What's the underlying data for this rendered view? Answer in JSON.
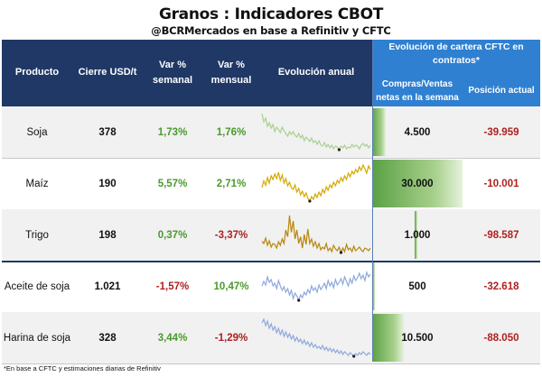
{
  "title": "Granos : Indicadores CBOT",
  "subtitle": "@BCRMercados en base a Refinitiv y CFTC",
  "headers": {
    "producto": "Producto",
    "cierre": "Cierre USD/t",
    "var_semanal": "Var %\nsemanal",
    "var_mensual": "Var %\nmensual",
    "evolucion": "Evolución anual",
    "cftc_group": "Evolución de cartera CFTC en\ncontratos*",
    "compras": "Compras/Ventas\nnetas en la semana",
    "posicion": "Posición actual"
  },
  "rows": [
    {
      "producto": "Soja",
      "cierre": "378",
      "var_semanal": "1,73%",
      "var_mensual": "1,76%",
      "compras": "4.500",
      "posicion": "-39.959",
      "compras_value": 4500,
      "spark_color": "#a9d08e",
      "spark": [
        0.9,
        0.72,
        0.8,
        0.62,
        0.7,
        0.58,
        0.66,
        0.5,
        0.6,
        0.55,
        0.48,
        0.6,
        0.52,
        0.46,
        0.4,
        0.5,
        0.44,
        0.5,
        0.42,
        0.38,
        0.46,
        0.36,
        0.42,
        0.3,
        0.38,
        0.34,
        0.28,
        0.36,
        0.26,
        0.3,
        0.22,
        0.3,
        0.2,
        0.18,
        0.26,
        0.16,
        0.22,
        0.14,
        0.2,
        0.12,
        0.18,
        0.16,
        0.1,
        0.18,
        0.14,
        0.2,
        0.12,
        0.16,
        0.14,
        0.22,
        0.16,
        0.2,
        0.18,
        0.12,
        0.2,
        0.24,
        0.18,
        0.22,
        0.14,
        0.2
      ]
    },
    {
      "producto": "Maíz",
      "cierre": "190",
      "var_semanal": "5,57%",
      "var_mensual": "2,71%",
      "compras": "30.000",
      "posicion": "-10.001",
      "compras_value": 30000,
      "spark_color": "#d4a800",
      "spark": [
        0.4,
        0.55,
        0.45,
        0.62,
        0.5,
        0.66,
        0.58,
        0.7,
        0.6,
        0.74,
        0.56,
        0.68,
        0.5,
        0.6,
        0.44,
        0.52,
        0.4,
        0.36,
        0.46,
        0.3,
        0.38,
        0.24,
        0.32,
        0.2,
        0.28,
        0.16,
        0.1,
        0.2,
        0.14,
        0.26,
        0.18,
        0.3,
        0.22,
        0.36,
        0.28,
        0.42,
        0.34,
        0.46,
        0.4,
        0.52,
        0.44,
        0.56,
        0.5,
        0.62,
        0.54,
        0.66,
        0.58,
        0.72,
        0.64,
        0.76,
        0.7,
        0.8,
        0.74,
        0.86,
        0.78,
        0.9,
        0.82,
        0.72,
        0.88,
        0.8
      ]
    },
    {
      "producto": "Trigo",
      "cierre": "198",
      "var_semanal": "0,37%",
      "var_mensual": "-3,37%",
      "compras": "1.000",
      "posicion": "-98.587",
      "compras_value": 1000,
      "spark_color": "#b8860b",
      "spark": [
        0.35,
        0.3,
        0.42,
        0.26,
        0.36,
        0.22,
        0.3,
        0.28,
        0.2,
        0.34,
        0.26,
        0.4,
        0.3,
        0.6,
        0.45,
        0.92,
        0.55,
        0.8,
        0.4,
        0.6,
        0.3,
        0.45,
        0.2,
        0.5,
        0.28,
        0.62,
        0.3,
        0.4,
        0.24,
        0.34,
        0.2,
        0.3,
        0.16,
        0.22,
        0.18,
        0.3,
        0.14,
        0.2,
        0.12,
        0.26,
        0.18,
        0.14,
        0.22,
        0.1,
        0.2,
        0.12,
        0.28,
        0.16,
        0.2,
        0.12,
        0.24,
        0.14,
        0.18,
        0.22,
        0.16,
        0.12,
        0.2,
        0.18,
        0.14,
        0.2
      ]
    },
    {
      "producto": "Aceite de soja",
      "cierre": "1.021",
      "var_semanal": "-1,57%",
      "var_mensual": "10,47%",
      "compras": "500",
      "posicion": "-32.618",
      "compras_value": 500,
      "spark_color": "#8ea9db",
      "spark": [
        0.5,
        0.6,
        0.52,
        0.7,
        0.58,
        0.64,
        0.5,
        0.56,
        0.44,
        0.62,
        0.5,
        0.4,
        0.48,
        0.36,
        0.44,
        0.3,
        0.4,
        0.22,
        0.34,
        0.28,
        0.18,
        0.3,
        0.24,
        0.36,
        0.3,
        0.42,
        0.34,
        0.5,
        0.4,
        0.46,
        0.36,
        0.52,
        0.42,
        0.48,
        0.56,
        0.44,
        0.62,
        0.5,
        0.58,
        0.46,
        0.64,
        0.52,
        0.58,
        0.66,
        0.54,
        0.7,
        0.6,
        0.5,
        0.66,
        0.56,
        0.72,
        0.62,
        0.68,
        0.78,
        0.66,
        0.74,
        0.62,
        0.8,
        0.7,
        0.76
      ]
    },
    {
      "producto": "Harina de soja",
      "cierre": "328",
      "var_semanal": "3,44%",
      "var_mensual": "-1,29%",
      "compras": "10.500",
      "posicion": "-88.050",
      "compras_value": 10500,
      "spark_color": "#8ea9db",
      "spark": [
        0.82,
        0.9,
        0.76,
        0.86,
        0.7,
        0.8,
        0.66,
        0.74,
        0.6,
        0.7,
        0.56,
        0.66,
        0.52,
        0.62,
        0.5,
        0.58,
        0.46,
        0.54,
        0.42,
        0.5,
        0.4,
        0.46,
        0.36,
        0.44,
        0.34,
        0.4,
        0.3,
        0.38,
        0.28,
        0.34,
        0.26,
        0.3,
        0.24,
        0.32,
        0.22,
        0.28,
        0.2,
        0.26,
        0.18,
        0.24,
        0.16,
        0.22,
        0.14,
        0.2,
        0.12,
        0.18,
        0.14,
        0.1,
        0.16,
        0.12,
        0.08,
        0.14,
        0.1,
        0.16,
        0.12,
        0.18,
        0.14,
        0.1,
        0.16,
        0.12
      ]
    }
  ],
  "footnote": "*En base a CFTC y estimaciones diarias de Refinitiv"
}
